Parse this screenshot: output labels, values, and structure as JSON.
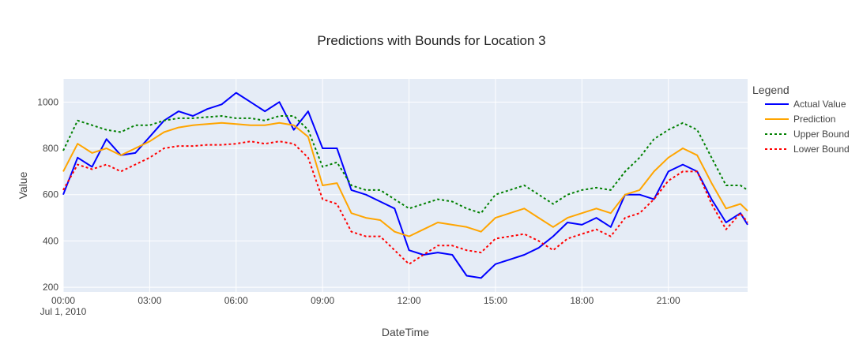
{
  "chart_data": {
    "type": "line",
    "title": "Predictions with Bounds for Location 3",
    "xlabel": "DateTime",
    "ylabel": "Value",
    "x_ticks": [
      "00:00",
      "03:00",
      "06:00",
      "09:00",
      "12:00",
      "15:00",
      "18:00",
      "21:00"
    ],
    "x_tick_values": [
      0,
      3,
      6,
      9,
      12,
      15,
      18,
      21
    ],
    "x_date_label": "Jul 1, 2010",
    "xlim": [
      0,
      23.75
    ],
    "ylim": [
      180,
      1100
    ],
    "y_ticks": [
      200,
      400,
      600,
      800,
      1000
    ],
    "grid": true,
    "plot_bg": "#e5ecf6",
    "legend": {
      "title": "Legend",
      "placement": "right"
    },
    "x_hours": [
      0,
      0.5,
      1,
      1.5,
      2,
      2.5,
      3,
      3.5,
      4,
      4.5,
      5,
      5.5,
      6,
      6.5,
      7,
      7.5,
      8,
      8.5,
      9,
      9.5,
      10,
      10.5,
      11,
      11.5,
      12,
      12.5,
      13,
      13.5,
      14,
      14.5,
      15,
      15.5,
      16,
      16.5,
      17,
      17.5,
      18,
      18.5,
      19,
      19.5,
      20,
      20.5,
      21,
      21.5,
      22,
      22.5,
      23,
      23.5,
      23.75
    ],
    "series": [
      {
        "name": "Actual Value",
        "color": "#0000ff",
        "dash": "solid",
        "values": [
          600,
          760,
          720,
          840,
          770,
          780,
          850,
          920,
          960,
          940,
          970,
          990,
          1040,
          1000,
          960,
          1000,
          880,
          960,
          800,
          800,
          620,
          600,
          570,
          540,
          360,
          340,
          350,
          340,
          250,
          240,
          300,
          320,
          340,
          370,
          420,
          480,
          470,
          500,
          460,
          600,
          600,
          580,
          700,
          730,
          700,
          580,
          480,
          520,
          470
        ]
      },
      {
        "name": "Prediction",
        "color": "#ffa500",
        "dash": "solid",
        "values": [
          700,
          820,
          780,
          800,
          770,
          800,
          830,
          870,
          890,
          900,
          905,
          910,
          905,
          900,
          900,
          910,
          900,
          850,
          640,
          650,
          520,
          500,
          490,
          440,
          420,
          450,
          480,
          470,
          460,
          440,
          500,
          520,
          540,
          500,
          460,
          500,
          520,
          540,
          520,
          600,
          620,
          700,
          760,
          800,
          770,
          650,
          540,
          560,
          530
        ]
      },
      {
        "name": "Upper Bound",
        "color": "#008000",
        "dash": "dotted",
        "values": [
          790,
          920,
          900,
          880,
          870,
          900,
          900,
          920,
          930,
          930,
          935,
          940,
          930,
          930,
          920,
          940,
          940,
          880,
          720,
          740,
          640,
          620,
          620,
          580,
          540,
          560,
          580,
          570,
          540,
          520,
          600,
          620,
          640,
          600,
          560,
          600,
          620,
          630,
          620,
          700,
          760,
          840,
          880,
          910,
          880,
          760,
          640,
          640,
          620
        ]
      },
      {
        "name": "Lower Bound",
        "color": "#ff0000",
        "dash": "dotted",
        "values": [
          620,
          730,
          710,
          730,
          700,
          730,
          760,
          800,
          810,
          810,
          815,
          815,
          820,
          830,
          820,
          830,
          820,
          760,
          580,
          560,
          440,
          420,
          420,
          360,
          300,
          340,
          380,
          380,
          360,
          350,
          410,
          420,
          430,
          400,
          360,
          410,
          430,
          450,
          420,
          500,
          520,
          580,
          660,
          700,
          700,
          560,
          450,
          520,
          480
        ]
      }
    ]
  }
}
